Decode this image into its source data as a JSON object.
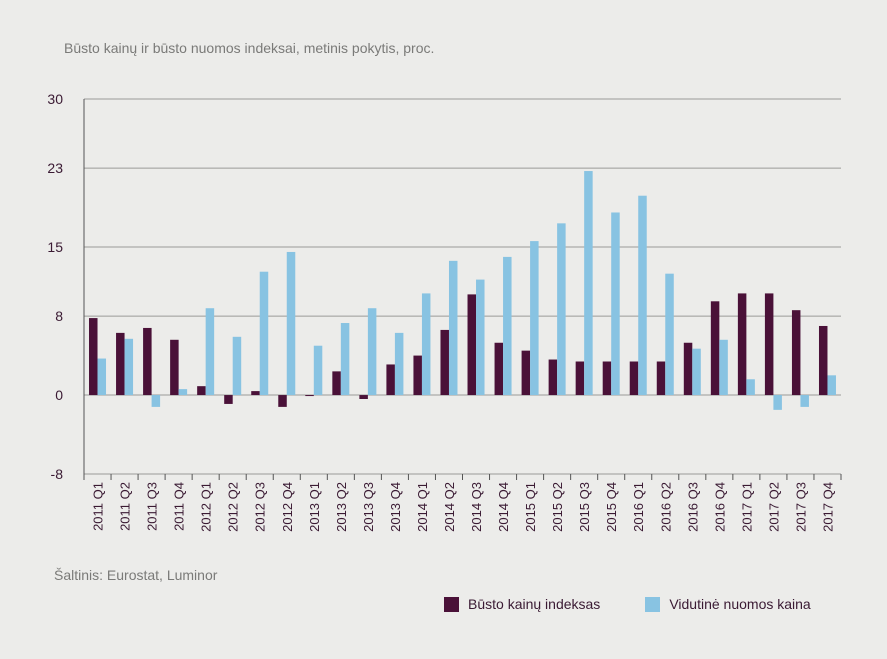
{
  "subtitle": "Būsto kainų ir būsto nuomos indeksai, metinis pokytis, proc.",
  "source": "Šaltinis: Eurostat, Luminor",
  "colors": {
    "series1": "#4a1138",
    "series2": "#88c3e2",
    "axis": "#555555",
    "grid": "#9a9a98",
    "tick_text": "#3a1a33"
  },
  "chart_data": {
    "type": "bar",
    "title": "Būsto kainų ir būsto nuomos indeksai, metinis pokytis, proc.",
    "xlabel": "",
    "ylabel": "",
    "ylim": [
      -8,
      30
    ],
    "yticks": [
      30,
      23,
      15,
      8,
      0,
      -8
    ],
    "grid": true,
    "legend_position": "bottom-right",
    "categories": [
      "2011 Q1",
      "2011 Q2",
      "2011 Q3",
      "2011 Q4",
      "2012 Q1",
      "2012 Q2",
      "2012 Q3",
      "2012 Q4",
      "2013 Q1",
      "2013 Q2",
      "2013 Q3",
      "2013 Q4",
      "2014 Q1",
      "2014 Q2",
      "2014 Q3",
      "2014 Q4",
      "2015 Q1",
      "2015 Q2",
      "2015 Q3",
      "2015 Q4",
      "2016 Q1",
      "2016 Q2",
      "2016 Q3",
      "2016 Q4",
      "2017 Q1",
      "2017 Q2",
      "2017 Q3",
      "2017 Q4"
    ],
    "series": [
      {
        "name": "Būsto kainų indeksas",
        "color": "#4a1138",
        "values": [
          7.8,
          6.3,
          6.8,
          5.6,
          0.9,
          -0.9,
          0.4,
          -1.2,
          -0.1,
          2.4,
          -0.4,
          3.1,
          4.0,
          6.6,
          10.2,
          5.3,
          4.5,
          3.6,
          3.4,
          3.4,
          3.4,
          3.4,
          5.3,
          9.5,
          10.3,
          10.3,
          8.6,
          7.0
        ]
      },
      {
        "name": "Vidutinė nuomos kaina",
        "color": "#88c3e2",
        "values": [
          3.7,
          5.7,
          -1.2,
          0.6,
          8.8,
          5.9,
          12.5,
          14.5,
          5.0,
          7.3,
          8.8,
          6.3,
          10.3,
          13.6,
          11.7,
          14.0,
          15.6,
          17.4,
          22.7,
          18.5,
          20.2,
          12.3,
          4.7,
          5.6,
          1.6,
          -1.5,
          -1.2,
          2.0
        ]
      }
    ]
  }
}
